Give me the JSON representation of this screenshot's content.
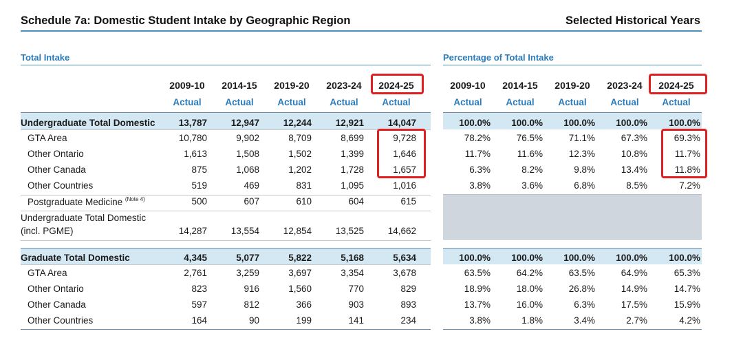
{
  "title": "Schedule 7a: Domestic Student Intake by Geographic Region",
  "subtitle": "Selected Historical Years",
  "left_section": "Total Intake",
  "right_section": "Percentage of Total Intake",
  "years": [
    "2009-10",
    "2014-15",
    "2019-20",
    "2023-24",
    "2024-25"
  ],
  "actual_label": "Actual",
  "note": "(Note 4)",
  "rows": [
    {
      "label": "Undergraduate Total Domestic",
      "values": [
        "13,787",
        "12,947",
        "12,244",
        "12,921",
        "14,047"
      ],
      "pct": [
        "100.0%",
        "100.0%",
        "100.0%",
        "100.0%",
        "100.0%"
      ]
    },
    {
      "label": "GTA Area",
      "values": [
        "10,780",
        "9,902",
        "8,709",
        "8,699",
        "9,728"
      ],
      "pct": [
        "78.2%",
        "76.5%",
        "71.1%",
        "67.3%",
        "69.3%"
      ]
    },
    {
      "label": "Other Ontario",
      "values": [
        "1,613",
        "1,508",
        "1,502",
        "1,399",
        "1,646"
      ],
      "pct": [
        "11.7%",
        "11.6%",
        "12.3%",
        "10.8%",
        "11.7%"
      ]
    },
    {
      "label": "Other Canada",
      "values": [
        "875",
        "1,068",
        "1,202",
        "1,728",
        "1,657"
      ],
      "pct": [
        "6.3%",
        "8.2%",
        "9.8%",
        "13.4%",
        "11.8%"
      ]
    },
    {
      "label": "Other Countries",
      "values": [
        "519",
        "469",
        "831",
        "1,095",
        "1,016"
      ],
      "pct": [
        "3.8%",
        "3.6%",
        "6.8%",
        "8.5%",
        "7.2%"
      ]
    },
    {
      "label": "Postgraduate Medicine",
      "values": [
        "500",
        "607",
        "610",
        "604",
        "615"
      ]
    },
    {
      "label": "Undergraduate Total Domestic",
      "label2": "(incl. PGME)",
      "values": [
        "14,287",
        "13,554",
        "12,854",
        "13,525",
        "14,662"
      ]
    },
    {
      "label": "Graduate Total Domestic",
      "values": [
        "4,345",
        "5,077",
        "5,822",
        "5,168",
        "5,634"
      ],
      "pct": [
        "100.0%",
        "100.0%",
        "100.0%",
        "100.0%",
        "100.0%"
      ]
    },
    {
      "label": "GTA Area",
      "values": [
        "2,761",
        "3,259",
        "3,697",
        "3,354",
        "3,678"
      ],
      "pct": [
        "63.5%",
        "64.2%",
        "63.5%",
        "64.9%",
        "65.3%"
      ]
    },
    {
      "label": "Other Ontario",
      "values": [
        "823",
        "916",
        "1,560",
        "770",
        "829"
      ],
      "pct": [
        "18.9%",
        "18.0%",
        "26.8%",
        "14.9%",
        "14.7%"
      ]
    },
    {
      "label": "Other Canada",
      "values": [
        "597",
        "812",
        "366",
        "903",
        "893"
      ],
      "pct": [
        "13.7%",
        "16.0%",
        "6.3%",
        "17.5%",
        "15.9%"
      ]
    },
    {
      "label": "Other Countries",
      "values": [
        "164",
        "90",
        "199",
        "141",
        "234"
      ],
      "pct": [
        "3.8%",
        "1.8%",
        "3.4%",
        "2.7%",
        "4.2%"
      ]
    }
  ],
  "colors": {
    "accent": "#2b7bb9",
    "band": "#d4e8f4",
    "highlight": "#e02020",
    "grey": "#cfd6de"
  }
}
